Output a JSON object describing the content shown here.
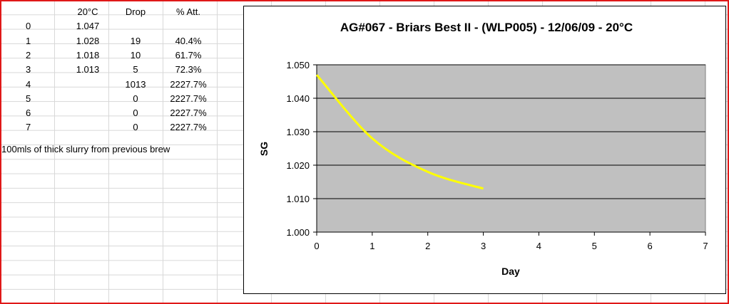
{
  "table": {
    "headers": [
      "",
      "20°C",
      "Drop",
      "% Att."
    ],
    "rows": [
      [
        "0",
        "1.047",
        "",
        ""
      ],
      [
        "1",
        "1.028",
        "19",
        "40.4%"
      ],
      [
        "2",
        "1.018",
        "10",
        "61.7%"
      ],
      [
        "3",
        "1.013",
        "5",
        "72.3%"
      ],
      [
        "4",
        "",
        "1013",
        "2227.7%"
      ],
      [
        "5",
        "",
        "0",
        "2227.7%"
      ],
      [
        "6",
        "",
        "0",
        "2227.7%"
      ],
      [
        "7",
        "",
        "0",
        "2227.7%"
      ]
    ],
    "note": "100mls of thick slurry from previous brew"
  },
  "chart_data": {
    "type": "line",
    "title": "AG#067 - Briars Best II - (WLP005) - 12/06/09 - 20°C",
    "xlabel": "Day",
    "ylabel": "SG",
    "xlim": [
      0,
      7
    ],
    "ylim": [
      1.0,
      1.05
    ],
    "xticks": [
      "0",
      "1",
      "2",
      "3",
      "4",
      "5",
      "6",
      "7"
    ],
    "yticks": [
      "1.000",
      "1.010",
      "1.020",
      "1.030",
      "1.040",
      "1.050"
    ],
    "grid": true,
    "plot_background": "#c0c0c0",
    "series": [
      {
        "color": "#ffff00",
        "x": [
          0,
          1,
          2,
          3
        ],
        "y": [
          1.047,
          1.028,
          1.018,
          1.013
        ]
      }
    ]
  }
}
